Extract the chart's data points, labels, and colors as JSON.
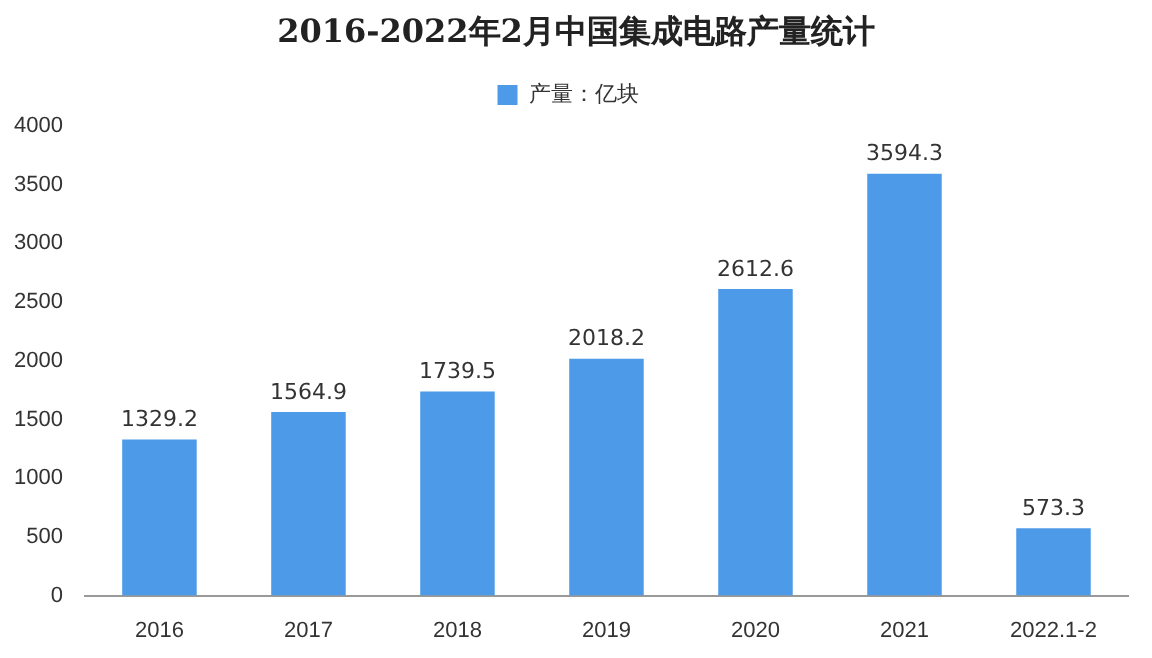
{
  "chart_data": {
    "type": "bar",
    "title": "2016-2022年2月中国集成电路产量统计",
    "categories": [
      "2016",
      "2017",
      "2018",
      "2019",
      "2020",
      "2021",
      "2022.1-2"
    ],
    "series": [
      {
        "name": "产量：亿块",
        "color": "#4d9be8",
        "values": [
          1329.2,
          1564.9,
          1739.5,
          2018.2,
          2612.6,
          3594.3,
          573.3
        ]
      }
    ],
    "ylim": [
      0,
      4000
    ],
    "yticks": [
      0,
      500,
      1000,
      1500,
      2000,
      2500,
      3000,
      3500,
      4000
    ],
    "grid": false,
    "legend": "top",
    "data_labels": true
  }
}
